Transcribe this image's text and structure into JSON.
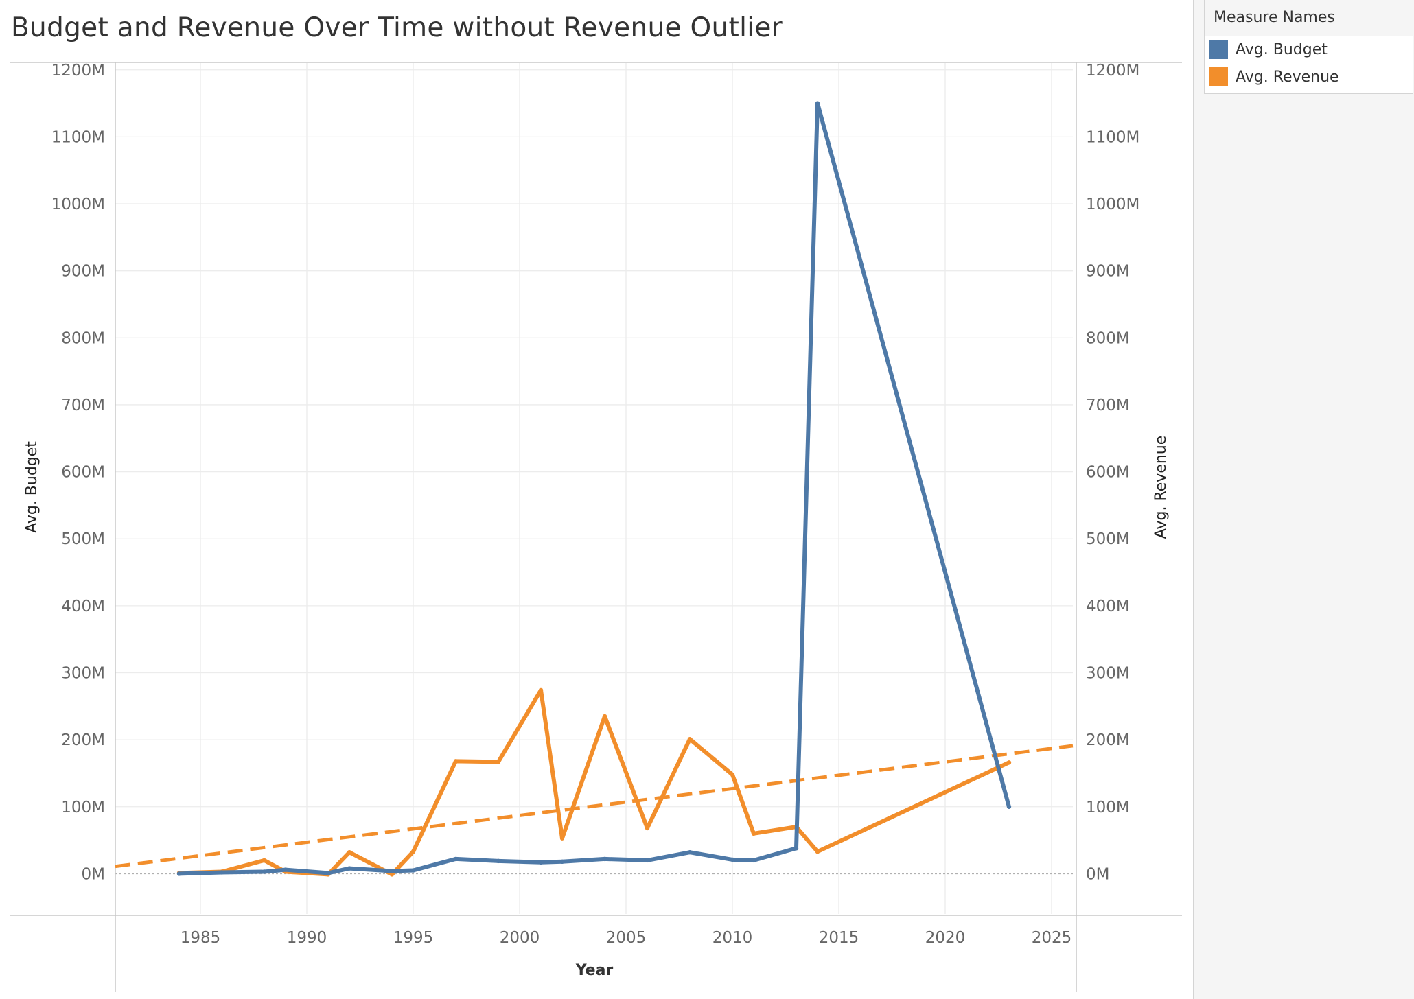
{
  "title": "Budget and Revenue Over Time without Revenue Outlier",
  "legend": {
    "title": "Measure Names",
    "items": [
      {
        "label": "Avg. Budget",
        "color": "#4e79a7"
      },
      {
        "label": "Avg. Revenue",
        "color": "#f28e2b"
      }
    ]
  },
  "chart_data": {
    "type": "line",
    "title": "Budget and Revenue Over Time without Revenue Outlier",
    "xlabel": "Year",
    "ylabel": "Avg. Budget",
    "ylabel_right": "Avg. Revenue",
    "xlim": [
      1981,
      2026
    ],
    "ylim": [
      -60,
      1210
    ],
    "x_ticks": [
      1985,
      1990,
      1995,
      2000,
      2005,
      2010,
      2015,
      2020,
      2025
    ],
    "y_ticks": [
      0,
      100,
      200,
      300,
      400,
      500,
      600,
      700,
      800,
      900,
      1000,
      1100,
      1200
    ],
    "y_tick_labels": [
      "0M",
      "100M",
      "200M",
      "300M",
      "400M",
      "500M",
      "600M",
      "700M",
      "800M",
      "900M",
      "1000M",
      "1100M",
      "1200M"
    ],
    "y_unit": "millions",
    "grid": true,
    "legend_position": "top-right",
    "series": [
      {
        "name": "Avg. Budget",
        "color": "#4e79a7",
        "axis": "left",
        "x": [
          1984,
          1986,
          1988,
          1989,
          1991,
          1992,
          1994,
          1995,
          1997,
          1999,
          2001,
          2002,
          2004,
          2006,
          2008,
          2010,
          2011,
          2013,
          2014,
          2023
        ],
        "y": [
          0,
          2,
          3,
          6,
          1,
          8,
          4,
          5,
          22,
          19,
          17,
          18,
          22,
          20,
          32,
          21,
          20,
          38,
          1150,
          100
        ]
      },
      {
        "name": "Avg. Revenue",
        "color": "#f28e2b",
        "axis": "right",
        "x": [
          1984,
          1986,
          1988,
          1989,
          1991,
          1992,
          1994,
          1995,
          1997,
          1999,
          2001,
          2002,
          2004,
          2006,
          2008,
          2010,
          2011,
          2013,
          2014,
          2023
        ],
        "y": [
          1,
          3,
          20,
          3,
          -1,
          32,
          -1,
          33,
          168,
          167,
          274,
          53,
          235,
          68,
          201,
          148,
          60,
          70,
          33,
          166
        ]
      }
    ],
    "trend_line": {
      "series": "Avg. Revenue",
      "color": "#f28e2b",
      "style": "dashed",
      "x": [
        1981,
        2026
      ],
      "y": [
        11,
        191
      ]
    }
  }
}
